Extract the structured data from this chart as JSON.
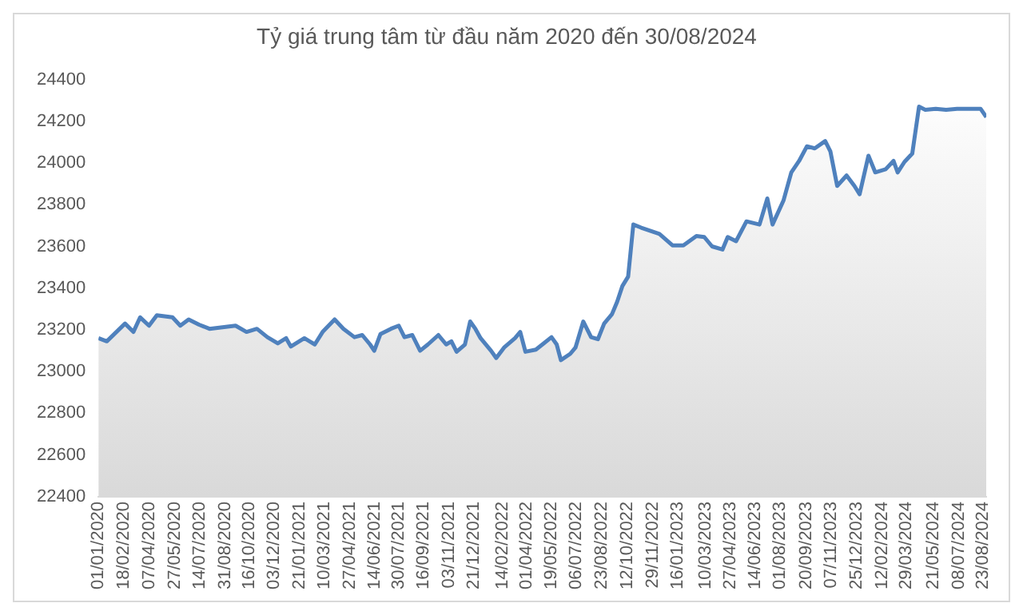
{
  "chart_data": {
    "type": "area",
    "title": "Tỷ giá trung tâm từ đầu năm 2020 đến 30/08/2024",
    "x": [
      "2020-01-01",
      "2020-01-17",
      "2020-02-21",
      "2020-03-08",
      "2020-03-21",
      "2020-04-07",
      "2020-04-22",
      "2020-05-22",
      "2020-06-06",
      "2020-06-22",
      "2020-07-12",
      "2020-08-01",
      "2020-09-20",
      "2020-10-11",
      "2020-10-31",
      "2020-11-20",
      "2020-12-10",
      "2020-12-26",
      "2021-01-04",
      "2021-01-30",
      "2021-02-09",
      "2021-02-19",
      "2021-03-06",
      "2021-03-29",
      "2021-04-15",
      "2021-05-06",
      "2021-05-21",
      "2021-06-05",
      "2021-06-13",
      "2021-06-25",
      "2021-07-15",
      "2021-07-30",
      "2021-08-10",
      "2021-08-25",
      "2021-09-09",
      "2021-09-24",
      "2021-10-14",
      "2021-10-29",
      "2021-11-08",
      "2021-11-18",
      "2021-12-04",
      "2021-12-14",
      "2021-12-24",
      "2022-01-03",
      "2022-01-23",
      "2022-02-02",
      "2022-02-17",
      "2022-03-10",
      "2022-03-20",
      "2022-03-30",
      "2022-04-19",
      "2022-05-04",
      "2022-05-19",
      "2022-05-29",
      "2022-06-06",
      "2022-06-24",
      "2022-07-04",
      "2022-07-19",
      "2022-08-03",
      "2022-08-16",
      "2022-08-28",
      "2022-09-12",
      "2022-09-22",
      "2022-10-02",
      "2022-10-13",
      "2022-10-23",
      "2022-11-07",
      "2022-12-12",
      "2023-01-06",
      "2023-01-27",
      "2023-02-21",
      "2023-03-08",
      "2023-03-23",
      "2023-04-12",
      "2023-04-22",
      "2023-05-08",
      "2023-05-28",
      "2023-06-22",
      "2023-07-07",
      "2023-07-17",
      "2023-08-07",
      "2023-08-22",
      "2023-09-06",
      "2023-09-21",
      "2023-10-06",
      "2023-10-26",
      "2023-11-05",
      "2023-11-18",
      "2023-12-06",
      "2023-12-21",
      "2023-12-31",
      "2024-01-17",
      "2024-01-30",
      "2024-02-19",
      "2024-03-05",
      "2024-03-13",
      "2024-03-26",
      "2024-04-10",
      "2024-04-23",
      "2024-05-05",
      "2024-05-25",
      "2024-06-14",
      "2024-07-05",
      "2024-07-25",
      "2024-08-19",
      "2024-08-30"
    ],
    "series": [
      {
        "color": "#4f81bd",
        "values": [
          23160,
          23145,
          23230,
          23190,
          23260,
          23220,
          23270,
          23260,
          23220,
          23250,
          23225,
          23205,
          23220,
          23190,
          23205,
          23165,
          23135,
          23160,
          23120,
          23160,
          23145,
          23130,
          23190,
          23250,
          23205,
          23165,
          23175,
          23130,
          23100,
          23180,
          23205,
          23220,
          23165,
          23175,
          23100,
          23130,
          23175,
          23130,
          23145,
          23095,
          23130,
          23240,
          23205,
          23160,
          23100,
          23065,
          23115,
          23160,
          23190,
          23095,
          23105,
          23135,
          23165,
          23130,
          23055,
          23085,
          23115,
          23240,
          23165,
          23155,
          23230,
          23275,
          23335,
          23410,
          23455,
          23705,
          23690,
          23660,
          23605,
          23605,
          23650,
          23645,
          23600,
          23585,
          23645,
          23625,
          23720,
          23705,
          23830,
          23705,
          23820,
          23955,
          24010,
          24080,
          24070,
          24105,
          24055,
          23890,
          23940,
          23890,
          23850,
          24035,
          23955,
          23970,
          24010,
          23955,
          24005,
          24045,
          24270,
          24255,
          24260,
          24255,
          24260,
          24260,
          24260,
          24220
        ]
      }
    ],
    "xlim": [
      "2020-01-01",
      "2024-08-30"
    ],
    "xticks": [
      {
        "value": "2020-01-01",
        "label": "01/01/2020"
      },
      {
        "value": "2020-02-18",
        "label": "18/02/2020"
      },
      {
        "value": "2020-04-07",
        "label": "07/04/2020"
      },
      {
        "value": "2020-05-27",
        "label": "27/05/2020"
      },
      {
        "value": "2020-07-14",
        "label": "14/07/2020"
      },
      {
        "value": "2020-08-31",
        "label": "31/08/2020"
      },
      {
        "value": "2020-10-16",
        "label": "16/10/2020"
      },
      {
        "value": "2020-12-03",
        "label": "03/12/2020"
      },
      {
        "value": "2021-01-21",
        "label": "21/01/2021"
      },
      {
        "value": "2021-03-10",
        "label": "10/03/2021"
      },
      {
        "value": "2021-04-27",
        "label": "27/04/2021"
      },
      {
        "value": "2021-06-14",
        "label": "14/06/2021"
      },
      {
        "value": "2021-07-30",
        "label": "30/07/2021"
      },
      {
        "value": "2021-09-16",
        "label": "16/09/2021"
      },
      {
        "value": "2021-11-03",
        "label": "03/11/2021"
      },
      {
        "value": "2021-12-21",
        "label": "21/12/2021"
      },
      {
        "value": "2022-02-14",
        "label": "14/02/2022"
      },
      {
        "value": "2022-04-01",
        "label": "01/04/2022"
      },
      {
        "value": "2022-05-19",
        "label": "19/05/2022"
      },
      {
        "value": "2022-07-06",
        "label": "06/07/2022"
      },
      {
        "value": "2022-08-23",
        "label": "23/08/2022"
      },
      {
        "value": "2022-10-12",
        "label": "12/10/2022"
      },
      {
        "value": "2022-11-29",
        "label": "29/11/2022"
      },
      {
        "value": "2023-01-16",
        "label": "16/01/2023"
      },
      {
        "value": "2023-03-10",
        "label": "10/03/2023"
      },
      {
        "value": "2023-04-27",
        "label": "27/04/2023"
      },
      {
        "value": "2023-06-14",
        "label": "14/06/2023"
      },
      {
        "value": "2023-08-01",
        "label": "01/08/2023"
      },
      {
        "value": "2023-09-20",
        "label": "20/09/2023"
      },
      {
        "value": "2023-11-07",
        "label": "07/11/2023"
      },
      {
        "value": "2023-12-25",
        "label": "25/12/2023"
      },
      {
        "value": "2024-02-12",
        "label": "12/02/2024"
      },
      {
        "value": "2024-03-29",
        "label": "29/03/2024"
      },
      {
        "value": "2024-05-21",
        "label": "21/05/2024"
      },
      {
        "value": "2024-07-08",
        "label": "08/07/2024"
      },
      {
        "value": "2024-08-23",
        "label": "23/08/2024"
      }
    ],
    "ylim": [
      22400,
      24400
    ],
    "yticks": [
      22400,
      22600,
      22800,
      23000,
      23200,
      23400,
      23600,
      23800,
      24000,
      24200,
      24400
    ],
    "grid": false,
    "legend": false
  }
}
